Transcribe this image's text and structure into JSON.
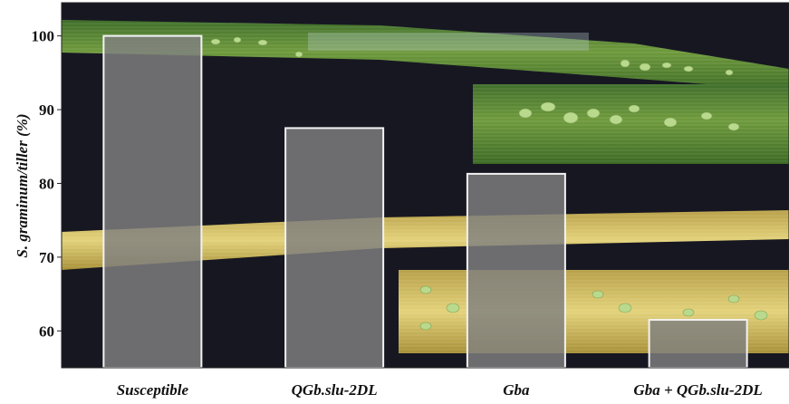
{
  "chart_data": {
    "type": "bar",
    "categories": [
      "Susceptible",
      "QGb.slu-2DL",
      "Gba",
      "Gba + QGb.slu-2DL"
    ],
    "values": [
      100,
      87.5,
      81.3,
      61.5
    ],
    "ylabel": "S. graminum/tiller (%)",
    "xlabel": "",
    "ylim": [
      55,
      104.5
    ],
    "yticks": [
      60,
      70,
      80,
      90,
      100
    ],
    "grid": false,
    "bar_color": "#808080",
    "bar_edge_color": "#f2f2f2",
    "background_color": "#171722"
  }
}
